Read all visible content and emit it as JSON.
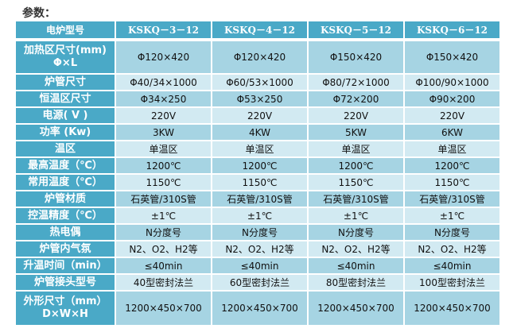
{
  "title": "参数：",
  "header": {
    "label": "电炉型号",
    "models": [
      "KSKQ－3－12",
      "KSKQ－4－12",
      "KSKQ－5－12",
      "KSKQ－6－12"
    ]
  },
  "rows": [
    {
      "label": "加热区尺寸(mm)",
      "label2": "Φ×L",
      "values": [
        "Φ120×420",
        "Φ120×420",
        "Φ150×420",
        "Φ150×420"
      ]
    },
    {
      "label": "炉管尺寸",
      "values": [
        "Φ40/34×1000",
        "Φ60/53×1000",
        "Φ80/72×1000",
        "Φ100/90×1000"
      ]
    },
    {
      "label": "恒温区尺寸",
      "values": [
        "Φ34×250",
        "Φ53×250",
        "Φ72×200",
        "Φ90×200"
      ]
    },
    {
      "label": "电源( V )",
      "values": [
        "220V",
        "220V",
        "220V",
        "220V"
      ]
    },
    {
      "label": "功率 (Kw)",
      "values": [
        "3KW",
        "4KW",
        "5KW",
        "6KW"
      ]
    },
    {
      "label": "温区",
      "values": [
        "单温区",
        "单温区",
        "单温区",
        "单温区"
      ]
    },
    {
      "label": "最高温度（℃）",
      "values": [
        "1200℃",
        "1200℃",
        "1200℃",
        "1200℃"
      ]
    },
    {
      "label": "常用温度（℃）",
      "values": [
        "1150℃",
        "1150℃",
        "1150℃",
        "1150℃"
      ]
    },
    {
      "label": "炉管材质",
      "values": [
        "石英管/310S管",
        "石英管/310S管",
        "石英管/310S管",
        "石英管/310S管"
      ]
    },
    {
      "label": "控温精度（℃）",
      "values": [
        "±1℃",
        "±1℃",
        "±1℃",
        "±1℃"
      ]
    },
    {
      "label": "热电偶",
      "values": [
        "N分度号",
        "N分度号",
        "N分度号",
        "N分度号"
      ]
    },
    {
      "label": "炉管内气氛",
      "values": [
        "N2、O2、H2等",
        "N2、O2、H2等",
        "N2、O2、H2等",
        "N2、O2、H2等"
      ]
    },
    {
      "label": "升温时间（min）",
      "values": [
        "≤40min",
        "≤40min",
        "≤40min",
        "≤40min"
      ]
    },
    {
      "label": "炉管接头型号",
      "values": [
        "40型密封法兰",
        "60型密封法兰",
        "80型密封法兰",
        "100型密封法兰"
      ]
    },
    {
      "label": "外形尺寸（mm）",
      "label2": "D×W×H",
      "values": [
        "1200×450×700",
        "1200×450×700",
        "1200×450×700",
        "1200×450×700"
      ]
    }
  ]
}
